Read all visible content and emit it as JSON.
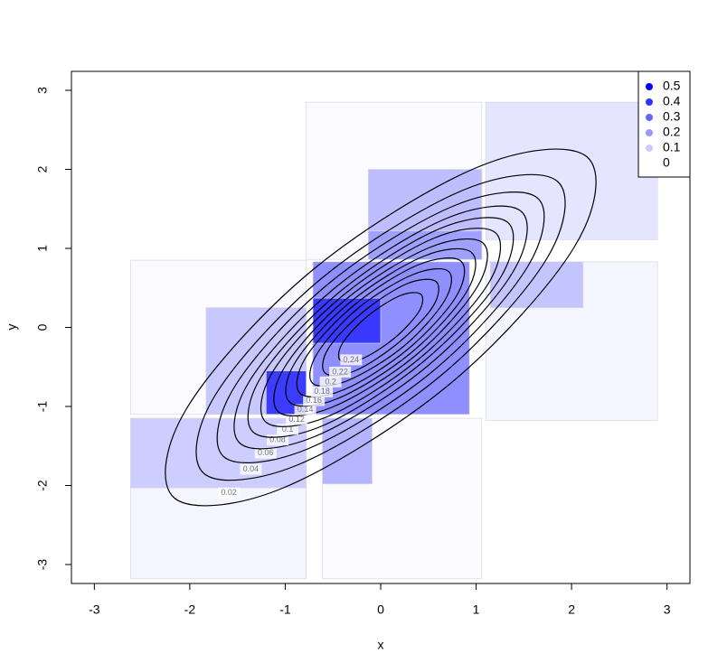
{
  "chart_data": {
    "type": "contour",
    "xlabel": "x",
    "ylabel": "y",
    "xlim": [
      -3.24,
      3.24
    ],
    "ylim": [
      -3.24,
      3.24
    ],
    "xticks": [
      -3,
      -2,
      -1,
      0,
      1,
      2,
      3
    ],
    "yticks": [
      -3,
      -2,
      -1,
      0,
      1,
      2,
      3
    ],
    "color": "#0000ff",
    "legend": {
      "position": "top-right",
      "values": [
        0.5,
        0.4,
        0.3,
        0.2,
        0.1,
        0
      ]
    },
    "cells": [
      {
        "x": [
          -0.78,
          1.06
        ],
        "y": [
          0.86,
          2.85
        ],
        "value": 0.01
      },
      {
        "x": [
          1.1,
          2.9
        ],
        "y": [
          1.11,
          2.85
        ],
        "value": 0.05
      },
      {
        "x": [
          1.1,
          2.9
        ],
        "y": [
          -1.18,
          0.83
        ],
        "value": 0.02
      },
      {
        "x": [
          -2.62,
          -0.78
        ],
        "y": [
          -1.1,
          0.85
        ],
        "value": 0.01
      },
      {
        "x": [
          -2.62,
          -0.78
        ],
        "y": [
          -3.18,
          -1.15
        ],
        "value": 0.02
      },
      {
        "x": [
          -0.61,
          1.06
        ],
        "y": [
          -3.18,
          -1.15
        ],
        "value": 0.01
      },
      {
        "x": [
          -0.13,
          1.06
        ],
        "y": [
          1.22,
          2.0
        ],
        "value": 0.12
      },
      {
        "x": [
          -0.13,
          1.06
        ],
        "y": [
          0.86,
          1.22
        ],
        "value": 0.18
      },
      {
        "x": [
          1.15,
          2.12
        ],
        "y": [
          0.25,
          0.83
        ],
        "value": 0.1
      },
      {
        "x": [
          -0.71,
          0.93
        ],
        "y": [
          -1.1,
          0.83
        ],
        "value": 0.22
      },
      {
        "x": [
          -0.71,
          0.0
        ],
        "y": [
          -0.2,
          0.37
        ],
        "value": 0.3
      },
      {
        "x": [
          -1.83,
          -0.78
        ],
        "y": [
          -1.1,
          0.25
        ],
        "value": 0.1
      },
      {
        "x": [
          -1.2,
          -0.78
        ],
        "y": [
          -1.1,
          -0.55
        ],
        "value": 0.35
      },
      {
        "x": [
          -2.62,
          -0.78
        ],
        "y": [
          -2.03,
          -1.15
        ],
        "value": 0.08
      },
      {
        "x": [
          -0.61,
          -0.09
        ],
        "y": [
          -1.98,
          -1.15
        ],
        "value": 0.14
      }
    ],
    "contours": [
      {
        "level": 0.02,
        "x": [
          2.16,
          2.03,
          0.72,
          -1.02,
          -2.16,
          -2.03,
          -0.72,
          1.02
        ],
        "y": [
          2.16,
          1.02,
          -0.72,
          -2.03,
          -2.16,
          -1.02,
          0.72,
          2.03
        ]
      },
      {
        "level": 0.04,
        "x": [
          1.85,
          1.74,
          0.62,
          -0.87,
          -1.85,
          -1.74,
          -0.62,
          0.87
        ],
        "y": [
          1.85,
          0.87,
          -0.62,
          -1.74,
          -1.85,
          -0.87,
          0.62,
          1.74
        ]
      },
      {
        "level": 0.06,
        "x": [
          1.64,
          1.54,
          0.55,
          -0.77,
          -1.64,
          -1.54,
          -0.55,
          0.77
        ],
        "y": [
          1.64,
          0.77,
          -0.55,
          -1.54,
          -1.64,
          -0.77,
          0.55,
          1.54
        ]
      },
      {
        "level": 0.08,
        "x": [
          1.47,
          1.38,
          0.49,
          -0.69,
          -1.47,
          -1.38,
          -0.49,
          0.69
        ],
        "y": [
          1.47,
          0.69,
          -0.49,
          -1.38,
          -1.47,
          -0.69,
          0.49,
          1.38
        ]
      },
      {
        "level": 0.1,
        "x": [
          1.33,
          1.25,
          0.44,
          -0.62,
          -1.33,
          -1.25,
          -0.44,
          0.62
        ],
        "y": [
          1.33,
          0.62,
          -0.44,
          -1.25,
          -1.33,
          -0.62,
          0.44,
          1.25
        ]
      },
      {
        "level": 0.12,
        "x": [
          1.2,
          1.13,
          0.4,
          -0.56,
          -1.2,
          -1.13,
          -0.4,
          0.56
        ],
        "y": [
          1.2,
          0.56,
          -0.4,
          -1.13,
          -1.2,
          -0.56,
          0.4,
          1.13
        ]
      },
      {
        "level": 0.14,
        "x": [
          1.07,
          1.01,
          0.36,
          -0.51,
          -1.07,
          -1.01,
          -0.36,
          0.51
        ],
        "y": [
          1.07,
          0.51,
          -0.36,
          -1.01,
          -1.07,
          -0.51,
          0.36,
          1.01
        ]
      },
      {
        "level": 0.16,
        "x": [
          0.95,
          0.9,
          0.32,
          -0.45,
          -0.95,
          -0.9,
          -0.32,
          0.45
        ],
        "y": [
          0.95,
          0.45,
          -0.32,
          -0.9,
          -0.95,
          -0.45,
          0.32,
          0.9
        ]
      },
      {
        "level": 0.18,
        "x": [
          0.84,
          0.79,
          0.28,
          -0.39,
          -0.84,
          -0.79,
          -0.28,
          0.39
        ],
        "y": [
          0.84,
          0.39,
          -0.28,
          -0.79,
          -0.84,
          -0.39,
          0.28,
          0.79
        ]
      },
      {
        "level": 0.2,
        "x": [
          0.71,
          0.67,
          0.24,
          -0.34,
          -0.71,
          -0.67,
          -0.24,
          0.34
        ],
        "y": [
          0.71,
          0.34,
          -0.24,
          -0.67,
          -0.71,
          -0.34,
          0.24,
          0.67
        ]
      },
      {
        "level": 0.22,
        "x": [
          0.58,
          0.55,
          0.19,
          -0.27,
          -0.58,
          -0.55,
          -0.19,
          0.27
        ],
        "y": [
          0.58,
          0.27,
          -0.19,
          -0.55,
          -0.58,
          -0.27,
          0.19,
          0.55
        ]
      },
      {
        "level": 0.24,
        "x": [
          0.42,
          0.4,
          0.14,
          -0.2,
          -0.42,
          -0.4,
          -0.14,
          0.2
        ],
        "y": [
          0.42,
          0.2,
          -0.14,
          -0.4,
          -0.42,
          -0.2,
          0.14,
          0.4
        ]
      }
    ]
  }
}
